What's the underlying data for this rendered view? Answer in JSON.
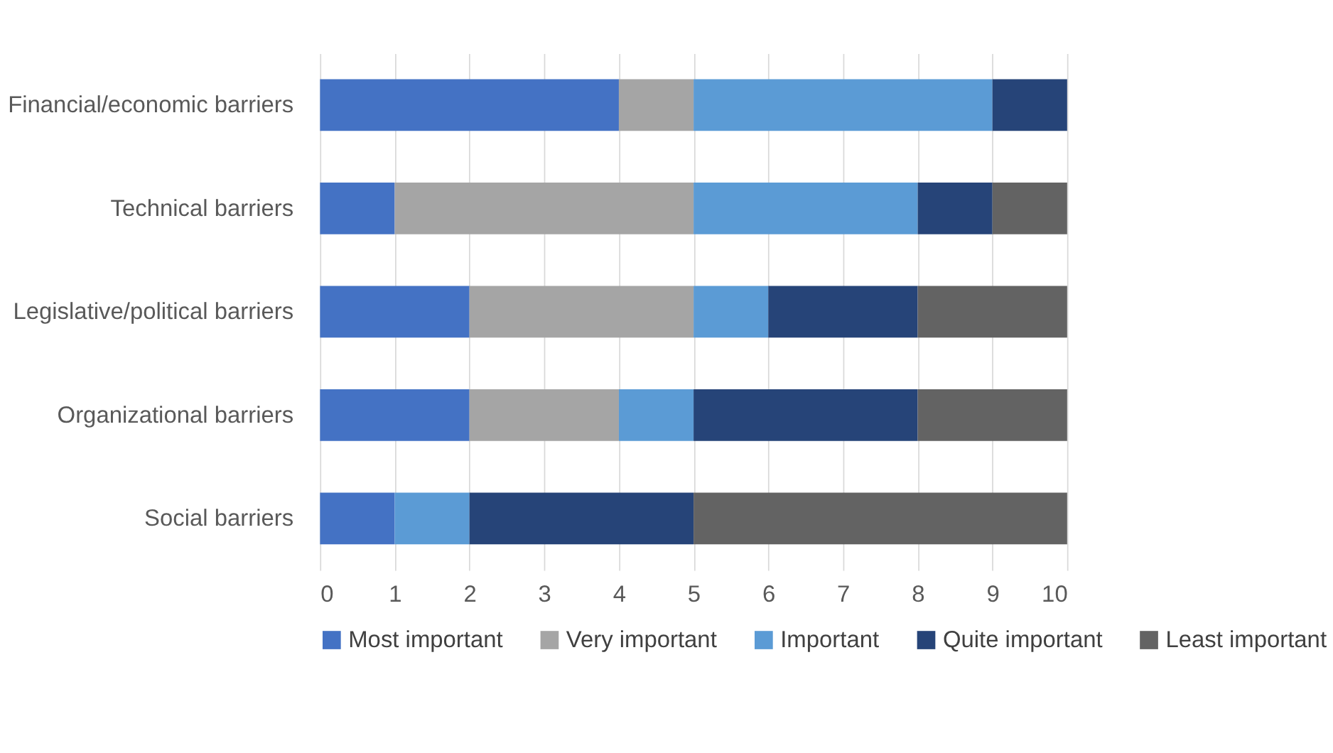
{
  "chart_data": {
    "type": "bar",
    "orientation": "horizontal",
    "stacked": true,
    "categories": [
      "Financial/economic barriers",
      "Technical barriers",
      "Legislative/political barriers",
      "Organizational barriers",
      "Social barriers"
    ],
    "series": [
      {
        "name": "Most important",
        "color": "#4472c4",
        "values": [
          4,
          1,
          2,
          2,
          1
        ]
      },
      {
        "name": "Very important",
        "color": "#a5a5a5",
        "values": [
          1,
          4,
          3,
          2,
          0
        ]
      },
      {
        "name": "Important",
        "color": "#5b9bd5",
        "values": [
          4,
          3,
          1,
          1,
          1
        ]
      },
      {
        "name": "Quite important",
        "color": "#264478",
        "values": [
          1,
          1,
          2,
          3,
          3
        ]
      },
      {
        "name": "Least important",
        "color": "#636363",
        "values": [
          0,
          1,
          2,
          2,
          5
        ]
      }
    ],
    "xlim": [
      0,
      10
    ],
    "xticks": [
      0,
      1,
      2,
      3,
      4,
      5,
      6,
      7,
      8,
      9,
      10
    ],
    "grid": "x",
    "legend": "bottom"
  }
}
